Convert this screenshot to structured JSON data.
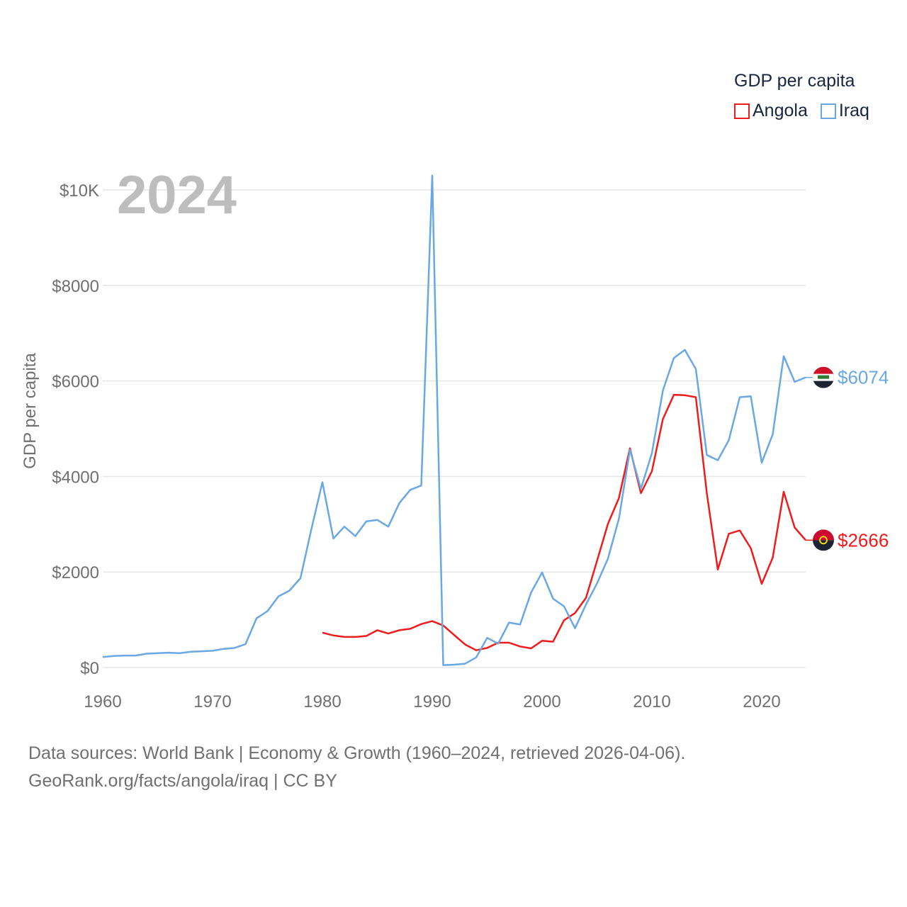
{
  "legend": {
    "title": "GDP per capita",
    "items": [
      {
        "name": "Angola",
        "color": "#ee1c1c"
      },
      {
        "name": "Iraq",
        "color": "#6aa8e4"
      }
    ]
  },
  "year_label": "2024",
  "end_labels": {
    "iraq": "$6074",
    "angola": "$2666"
  },
  "footer": {
    "line1": "Data sources: World Bank | Economy & Growth (1960–2024, retrieved 2026-04-06).",
    "line2": "GeoRank.org/facts/angola/iraq | CC BY"
  },
  "chart_data": {
    "type": "line",
    "title": "GDP per capita",
    "xlabel": "",
    "ylabel": "GDP per capita",
    "xlim": [
      1960,
      2024
    ],
    "ylim": [
      0,
      10000
    ],
    "x_ticks": [
      1960,
      1970,
      1980,
      1990,
      2000,
      2010,
      2020
    ],
    "x_tick_labels": [
      "1960",
      "1970",
      "1980",
      "1990",
      "2000",
      "2010",
      "2020"
    ],
    "y_ticks": [
      0,
      2000,
      4000,
      6000,
      8000,
      10000
    ],
    "y_tick_labels": [
      "$0",
      "$2000",
      "$4000",
      "$6000",
      "$8000",
      "$10K"
    ],
    "grid": true,
    "legend_position": "top-right",
    "series": [
      {
        "name": "Angola",
        "color": "#ee1c1c",
        "x": [
          1980,
          1981,
          1982,
          1983,
          1984,
          1985,
          1986,
          1987,
          1988,
          1989,
          1990,
          1991,
          1992,
          1993,
          1994,
          1995,
          1996,
          1997,
          1998,
          1999,
          2000,
          2001,
          2002,
          2003,
          2004,
          2005,
          2006,
          2007,
          2008,
          2009,
          2010,
          2011,
          2012,
          2013,
          2014,
          2015,
          2016,
          2017,
          2018,
          2019,
          2020,
          2021,
          2022,
          2023,
          2024
        ],
        "values": [
          730,
          670,
          640,
          640,
          660,
          780,
          710,
          780,
          810,
          910,
          970,
          880,
          680,
          480,
          360,
          410,
          520,
          520,
          440,
          400,
          560,
          540,
          990,
          1140,
          1460,
          2230,
          3010,
          3550,
          4590,
          3650,
          4110,
          5200,
          5710,
          5700,
          5660,
          3650,
          2050,
          2800,
          2870,
          2500,
          1750,
          2300,
          3680,
          2930,
          2666
        ]
      },
      {
        "name": "Iraq",
        "color": "#6aa8e4",
        "x": [
          1960,
          1961,
          1962,
          1963,
          1964,
          1965,
          1966,
          1967,
          1968,
          1969,
          1970,
          1971,
          1972,
          1973,
          1974,
          1975,
          1976,
          1977,
          1978,
          1979,
          1980,
          1981,
          1982,
          1983,
          1984,
          1985,
          1986,
          1987,
          1988,
          1989,
          1990,
          1991,
          1992,
          1993,
          1994,
          1995,
          1996,
          1997,
          1998,
          1999,
          2000,
          2001,
          2002,
          2003,
          2004,
          2005,
          2006,
          2007,
          2008,
          2009,
          2010,
          2011,
          2012,
          2013,
          2014,
          2015,
          2016,
          2017,
          2018,
          2019,
          2020,
          2021,
          2022,
          2023,
          2024
        ],
        "values": [
          220,
          240,
          250,
          250,
          290,
          300,
          310,
          300,
          330,
          340,
          350,
          390,
          410,
          490,
          1030,
          1180,
          1490,
          1610,
          1870,
          2900,
          3880,
          2700,
          2950,
          2750,
          3060,
          3090,
          2950,
          3440,
          3720,
          3810,
          10300,
          50,
          60,
          80,
          210,
          620,
          500,
          940,
          900,
          1570,
          1990,
          1440,
          1280,
          820,
          1320,
          1760,
          2280,
          3120,
          4560,
          3740,
          4490,
          5800,
          6480,
          6650,
          6250,
          4450,
          4340,
          4760,
          5660,
          5680,
          4290,
          4880,
          6520,
          5980,
          6074
        ]
      }
    ]
  }
}
